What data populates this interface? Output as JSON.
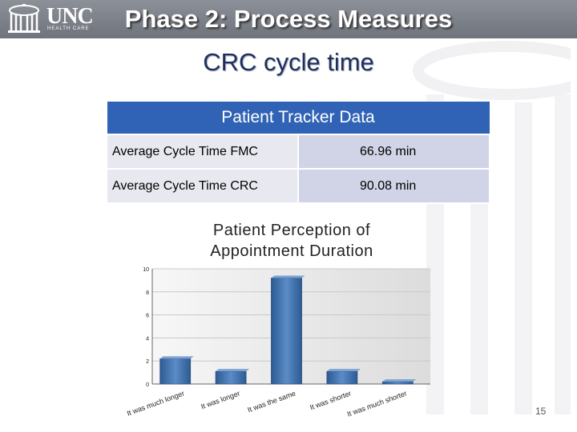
{
  "header": {
    "logo_main": "UNC",
    "logo_sub": "HEALTH CARE",
    "title": "Phase 2: Process Measures"
  },
  "subtitle": "CRC cycle time",
  "tracker_table": {
    "header": "Patient Tracker Data",
    "rows": [
      {
        "label": "Average Cycle Time FMC",
        "value": "66.96 min"
      },
      {
        "label": "Average Cycle Time CRC",
        "value": "90.08 min"
      }
    ]
  },
  "chart_title_line1": "Patient Perception of",
  "chart_title_line2": "Appointment Duration",
  "chart_data": {
    "type": "bar",
    "title": "Patient Perception of Appointment Duration",
    "categories": [
      "It was much longer",
      "It was longer",
      "It was the same",
      "It was shorter",
      "It was much shorter"
    ],
    "values": [
      2.2,
      1.1,
      9.2,
      1.1,
      0.2
    ],
    "ylim": [
      0,
      10
    ],
    "yticks": [
      "0",
      "2",
      "4",
      "6",
      "8",
      "10"
    ],
    "grid": true,
    "bar_color": "#3d6da8"
  },
  "page_number": "15"
}
